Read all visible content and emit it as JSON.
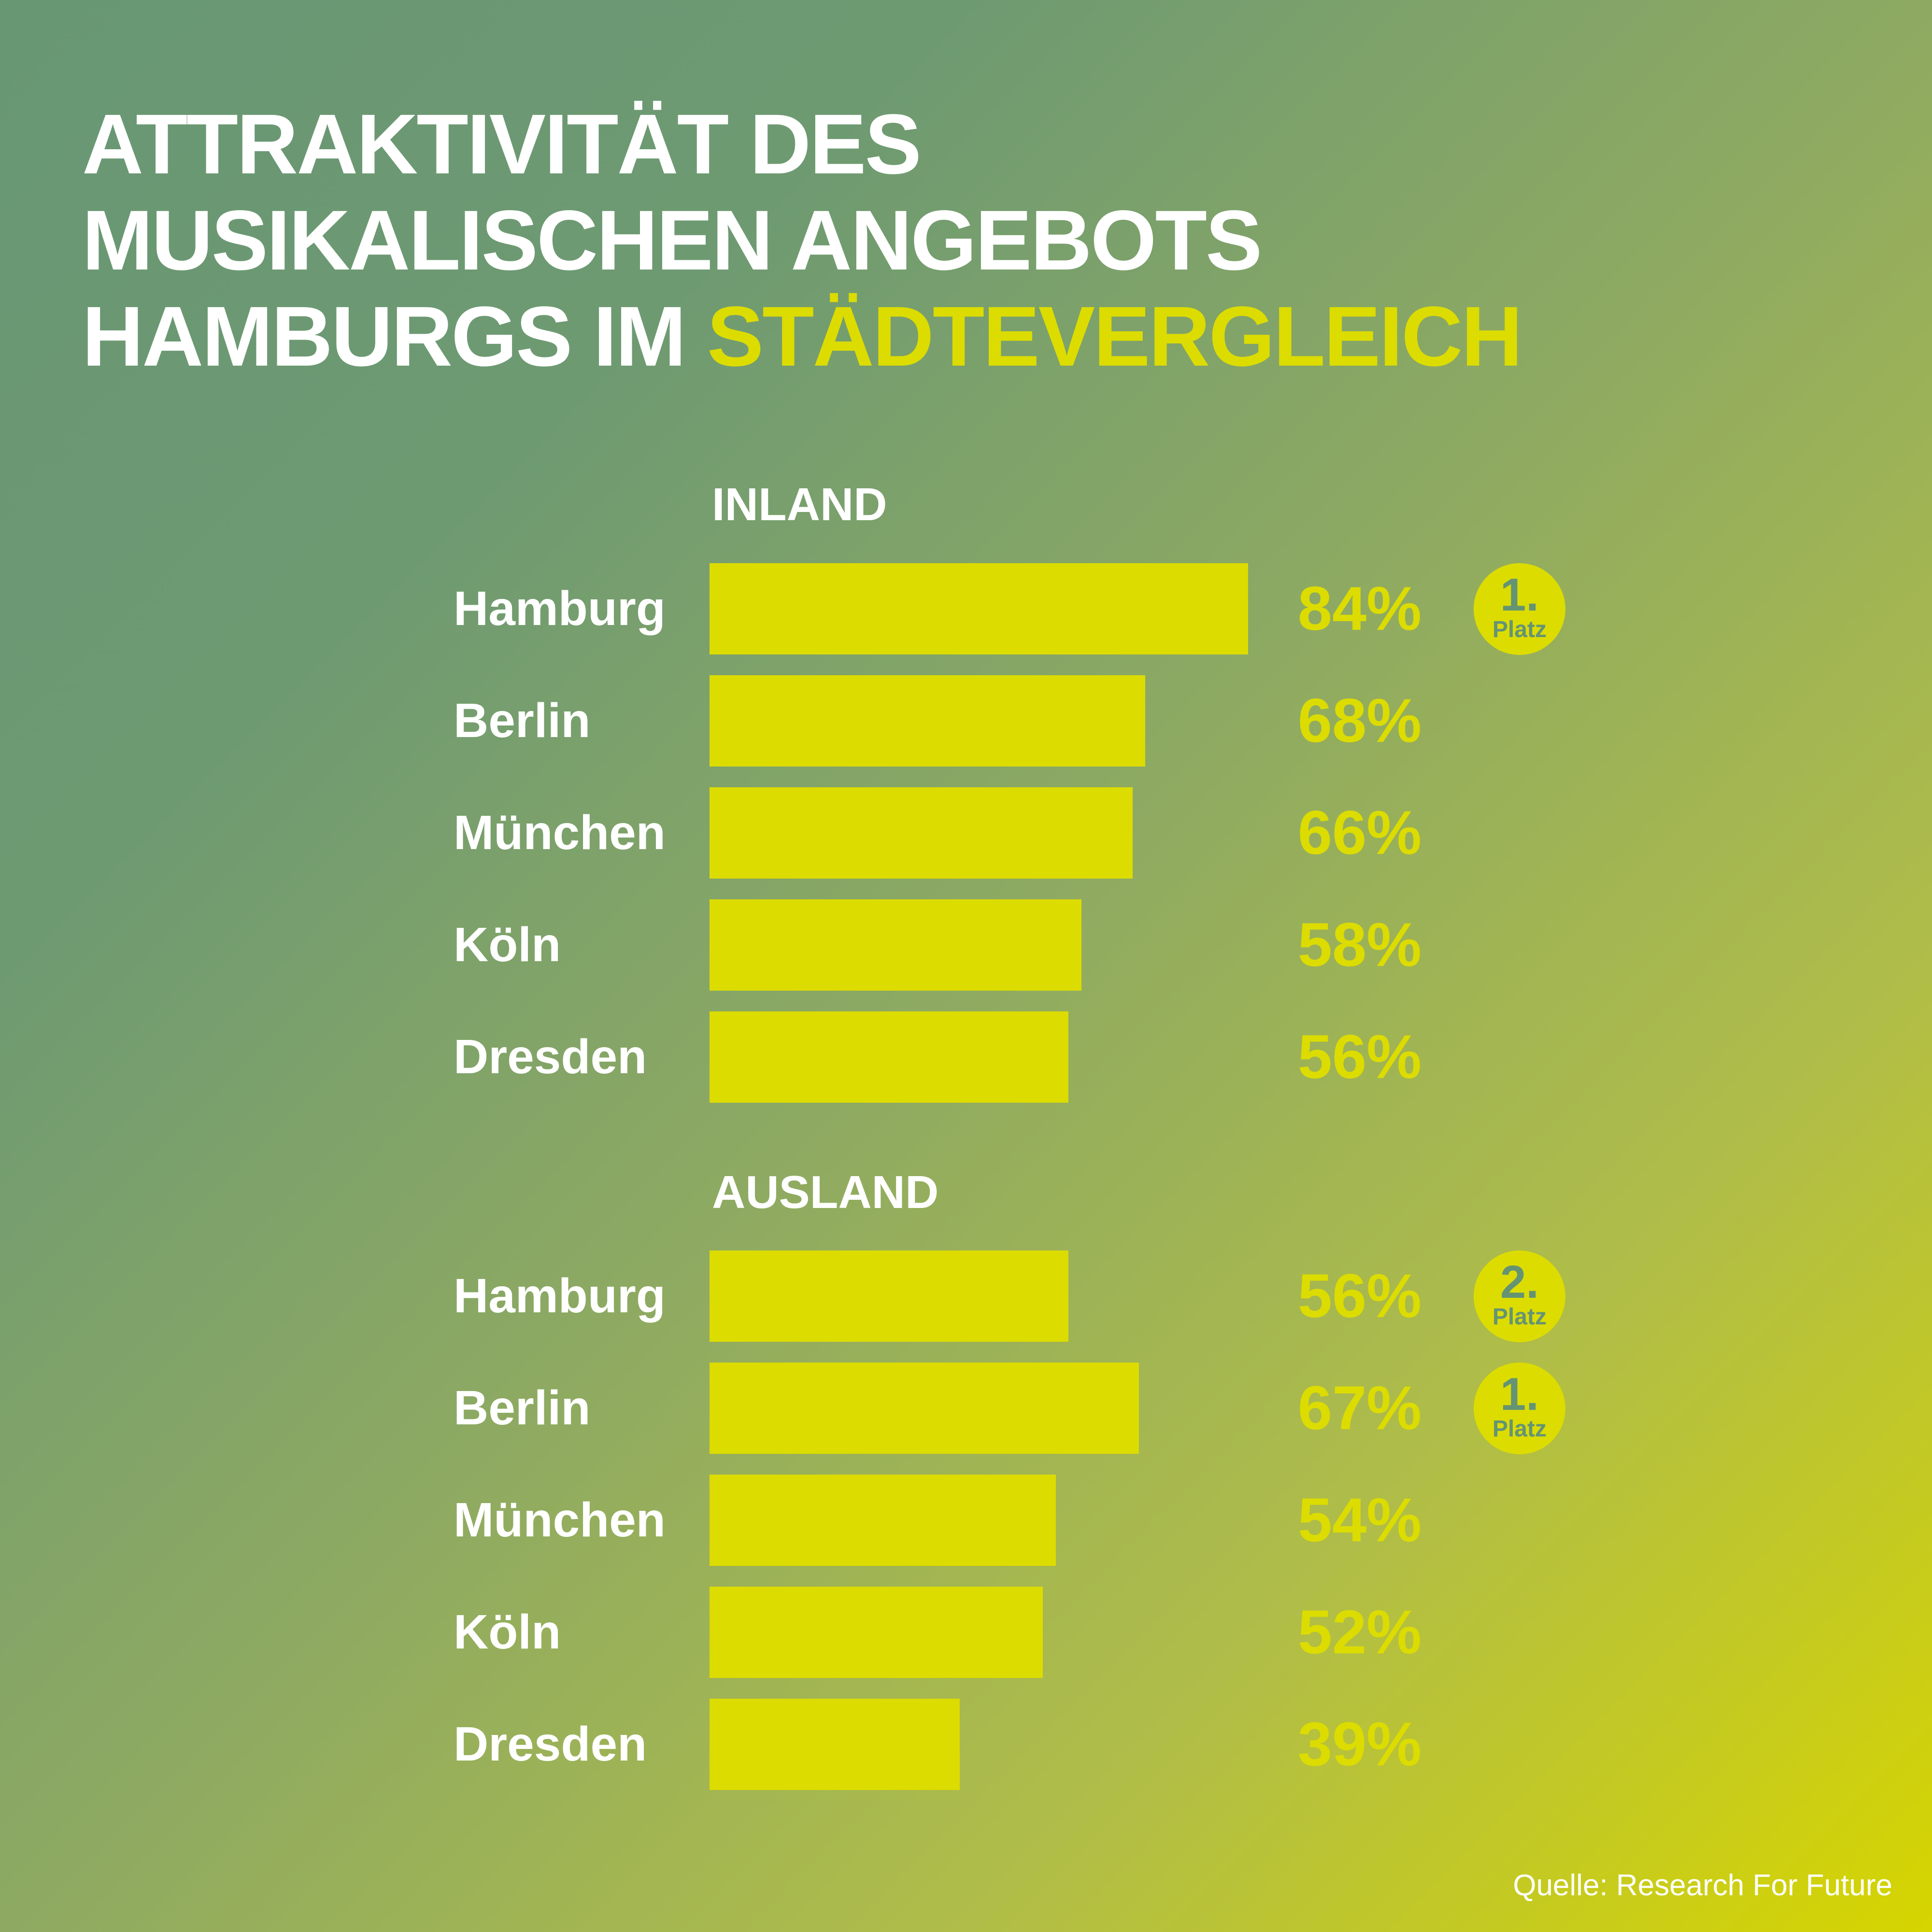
{
  "title": {
    "line1": "ATTRAKTIVITÄT DES",
    "line2": "MUSIKALISCHEN ANGEBOTS",
    "line3_prefix": "HAMBURGS IM ",
    "line3_highlight": "STÄDTEVERGLEICH"
  },
  "source": "Quelle: Research For Future",
  "colors": {
    "bar": "#dcdc00",
    "badge_text": "#649474",
    "bg_start": "#689774",
    "bg_end": "#d6d500"
  },
  "chart_data": {
    "type": "bar",
    "orientation": "horizontal",
    "title": "ATTRAKTIVITÄT DES MUSIKALISCHEN ANGEBOTS HAMBURGS IM STÄDTEVERGLEICH",
    "xlim": [
      0,
      100
    ],
    "unit": "%",
    "groups": [
      {
        "name": "INLAND",
        "categories": [
          "Hamburg",
          "Berlin",
          "München",
          "Köln",
          "Dresden"
        ],
        "values": [
          84,
          68,
          66,
          58,
          56
        ],
        "labels": [
          "84%",
          "68%",
          "66%",
          "58%",
          "56%"
        ],
        "badges": [
          {
            "index": 0,
            "rank": "1.",
            "text": "Platz"
          }
        ]
      },
      {
        "name": "AUSLAND",
        "categories": [
          "Hamburg",
          "Berlin",
          "München",
          "Köln",
          "Dresden"
        ],
        "values": [
          56,
          67,
          54,
          52,
          39
        ],
        "labels": [
          "56%",
          "67%",
          "54%",
          "52%",
          "39%"
        ],
        "badges": [
          {
            "index": 0,
            "rank": "2.",
            "text": "Platz"
          },
          {
            "index": 1,
            "rank": "1.",
            "text": "Platz"
          }
        ]
      }
    ]
  }
}
